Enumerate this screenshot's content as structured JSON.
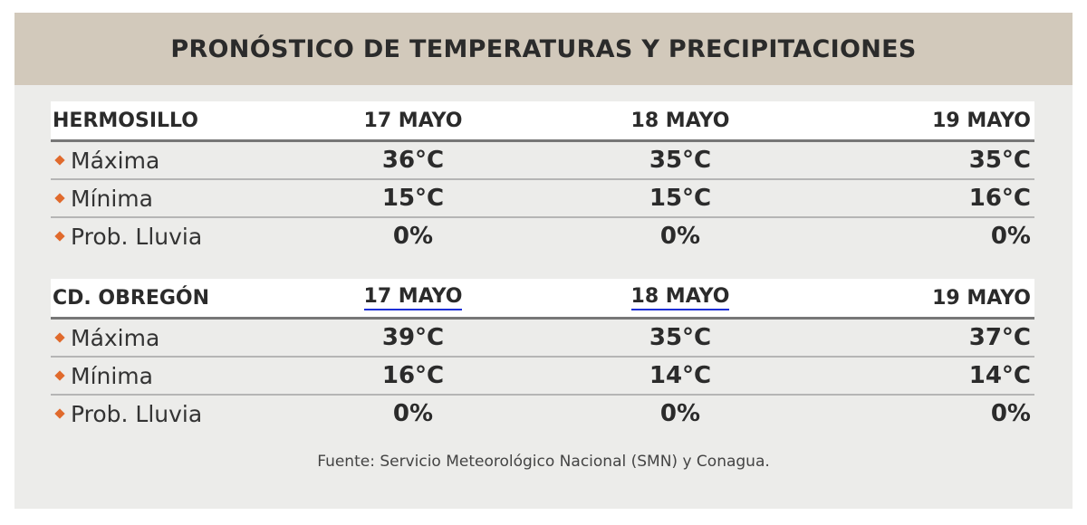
{
  "title": "PRONÓSTICO DE TEMPERATURAS Y PRECIPITACIONES",
  "sections": [
    {
      "city": "HERMOSILLO",
      "days": [
        "17 MAYO",
        "18 MAYO",
        "19 MAYO"
      ],
      "rows": [
        {
          "label": "Máxima",
          "values": [
            "36°C",
            "35°C",
            "35°C"
          ]
        },
        {
          "label": "Mínima",
          "values": [
            "15°C",
            "15°C",
            "16°C"
          ]
        },
        {
          "label": "Prob. Lluvia",
          "values": [
            "0%",
            "0%",
            "0%"
          ]
        }
      ]
    },
    {
      "city": "CD. OBREGÓN",
      "days": [
        "17 MAYO",
        "18 MAYO",
        "19 MAYO"
      ],
      "rows": [
        {
          "label": "Máxima",
          "values": [
            "39°C",
            "35°C",
            "37°C"
          ]
        },
        {
          "label": "Mínima",
          "values": [
            "16°C",
            "14°C",
            "14°C"
          ]
        },
        {
          "label": "Prob. Lluvia",
          "values": [
            "0%",
            "0%",
            "0%"
          ]
        }
      ]
    }
  ],
  "source": "Fuente: Servicio Meteorológico Nacional (SMN) y Conagua.",
  "colors": {
    "title_bar": "#d2c9bb",
    "bullet": "#e06a2c",
    "link_underline": "#1a2fd6"
  }
}
